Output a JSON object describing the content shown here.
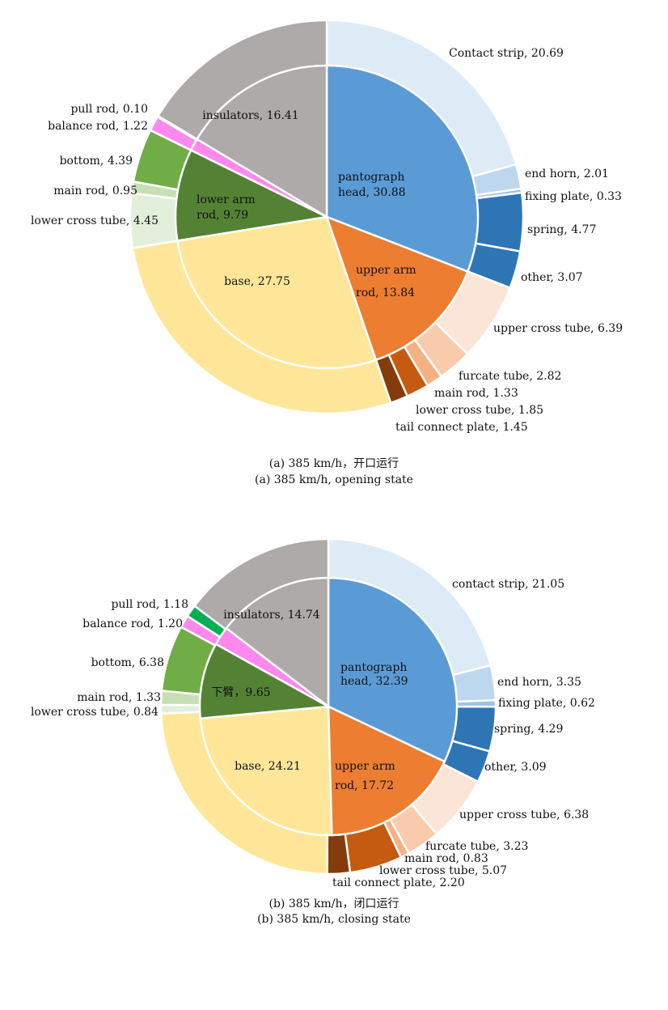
{
  "chart_data": [
    {
      "type": "pie",
      "caption_cn": "(a) 385 km/h，开口运行",
      "caption_en": "(a) 385 km/h, opening state",
      "inner": [
        {
          "label": "pantograph",
          "label2": "head, 30.88",
          "value": 30.88,
          "color": "#5b9bd5"
        },
        {
          "label": "upper arm",
          "label2": "rod, 13.84",
          "value": 13.84,
          "color": "#ed7d31"
        },
        {
          "label": "base, 27.75",
          "label2": "",
          "value": 27.75,
          "color": "#ffe699"
        },
        {
          "label": "lower arm",
          "label2": "rod, 9.79",
          "value": 9.79,
          "color": "#548235"
        },
        {
          "label": "",
          "label2": "",
          "value": 1.32,
          "color": "#ff88ee"
        },
        {
          "label": "insulators, 16.41",
          "label2": "",
          "value": 16.41,
          "color": "#aeaaaa"
        }
      ],
      "outer": [
        {
          "label": "Contact strip, 20.69",
          "value": 20.69,
          "color": "#ddebf7"
        },
        {
          "label": "end horn, 2.01",
          "value": 2.01,
          "color": "#bdd7ee"
        },
        {
          "label": "fixing plate, 0.33",
          "value": 0.33,
          "color": "#9dc3e6"
        },
        {
          "label": "spring, 4.77",
          "value": 4.77,
          "color": "#2e75b6"
        },
        {
          "label": "other, 3.07",
          "value": 3.07,
          "color": "#2e75b6"
        },
        {
          "label": "upper cross tube, 6.39",
          "value": 6.39,
          "color": "#fbe5d6"
        },
        {
          "label": "furcate tube, 2.82",
          "value": 2.82,
          "color": "#f8cbad"
        },
        {
          "label": "main rod, 1.33",
          "value": 1.33,
          "color": "#f4b183"
        },
        {
          "label": "lower cross tube, 1.85",
          "value": 1.85,
          "color": "#c55a11"
        },
        {
          "label": "tail connect plate, 1.45",
          "value": 1.45,
          "color": "#843c0c"
        },
        {
          "label": "",
          "value": 27.75,
          "color": "#ffe699"
        },
        {
          "label": "lower cross tube, 4.45",
          "value": 4.45,
          "color": "#e2efda"
        },
        {
          "label": "main rod, 0.95",
          "value": 0.95,
          "color": "#c6e0b4"
        },
        {
          "label": "bottom, 4.39",
          "value": 4.39,
          "color": "#70ad47"
        },
        {
          "label": "balance rod, 1.22",
          "value": 1.22,
          "color": "#ff88ee"
        },
        {
          "label": "pull rod, 0.10",
          "value": 0.1,
          "color": "#00b050"
        },
        {
          "label": "",
          "value": 16.41,
          "color": "#aeaaaa"
        }
      ]
    },
    {
      "type": "pie",
      "caption_cn": "(b) 385 km/h，闭口运行",
      "caption_en": "(b) 385 km/h, closing state",
      "inner": [
        {
          "label": "pantograph",
          "label2": "head, 32.39",
          "value": 32.39,
          "color": "#5b9bd5"
        },
        {
          "label": "upper arm",
          "label2": "rod, 17.72",
          "value": 17.72,
          "color": "#ed7d31"
        },
        {
          "label": "base, 24.21",
          "label2": "",
          "value": 24.21,
          "color": "#ffe699"
        },
        {
          "label": "下臂，9.65",
          "label2": "",
          "value": 9.65,
          "color": "#548235"
        },
        {
          "label": "",
          "label2": "",
          "value": 2.38,
          "color": "#ff88ee"
        },
        {
          "label": "insulators, 14.74",
          "label2": "",
          "value": 14.74,
          "color": "#aeaaaa"
        }
      ],
      "outer": [
        {
          "label": "contact strip, 21.05",
          "value": 21.05,
          "color": "#ddebf7"
        },
        {
          "label": "end horn, 3.35",
          "value": 3.35,
          "color": "#bdd7ee"
        },
        {
          "label": "fixing plate, 0.62",
          "value": 0.62,
          "color": "#9dc3e6"
        },
        {
          "label": "spring, 4.29",
          "value": 4.29,
          "color": "#2e75b6"
        },
        {
          "label": "other, 3.09",
          "value": 3.09,
          "color": "#2e75b6"
        },
        {
          "label": "upper cross tube, 6.38",
          "value": 6.38,
          "color": "#fbe5d6"
        },
        {
          "label": "furcate tube, 3.23",
          "value": 3.23,
          "color": "#f8cbad"
        },
        {
          "label": "main rod, 0.83",
          "value": 0.83,
          "color": "#f4b183"
        },
        {
          "label": "lower cross tube, 5.07",
          "value": 5.07,
          "color": "#c55a11"
        },
        {
          "label": "tail connect plate, 2.20",
          "value": 2.2,
          "color": "#843c0c"
        },
        {
          "label": "",
          "value": 24.21,
          "color": "#ffe699"
        },
        {
          "label": "lower cross tube, 0.84",
          "value": 0.84,
          "color": "#e2efda"
        },
        {
          "label": "main rod, 1.33",
          "value": 1.33,
          "color": "#c6e0b4"
        },
        {
          "label": "bottom, 6.38",
          "value": 6.38,
          "color": "#70ad47"
        },
        {
          "label": "balance rod, 1.20",
          "value": 1.2,
          "color": "#ff88ee"
        },
        {
          "label": "pull rod, 1.18",
          "value": 1.18,
          "color": "#00b050"
        },
        {
          "label": "",
          "value": 14.74,
          "color": "#aeaaaa"
        }
      ]
    }
  ]
}
